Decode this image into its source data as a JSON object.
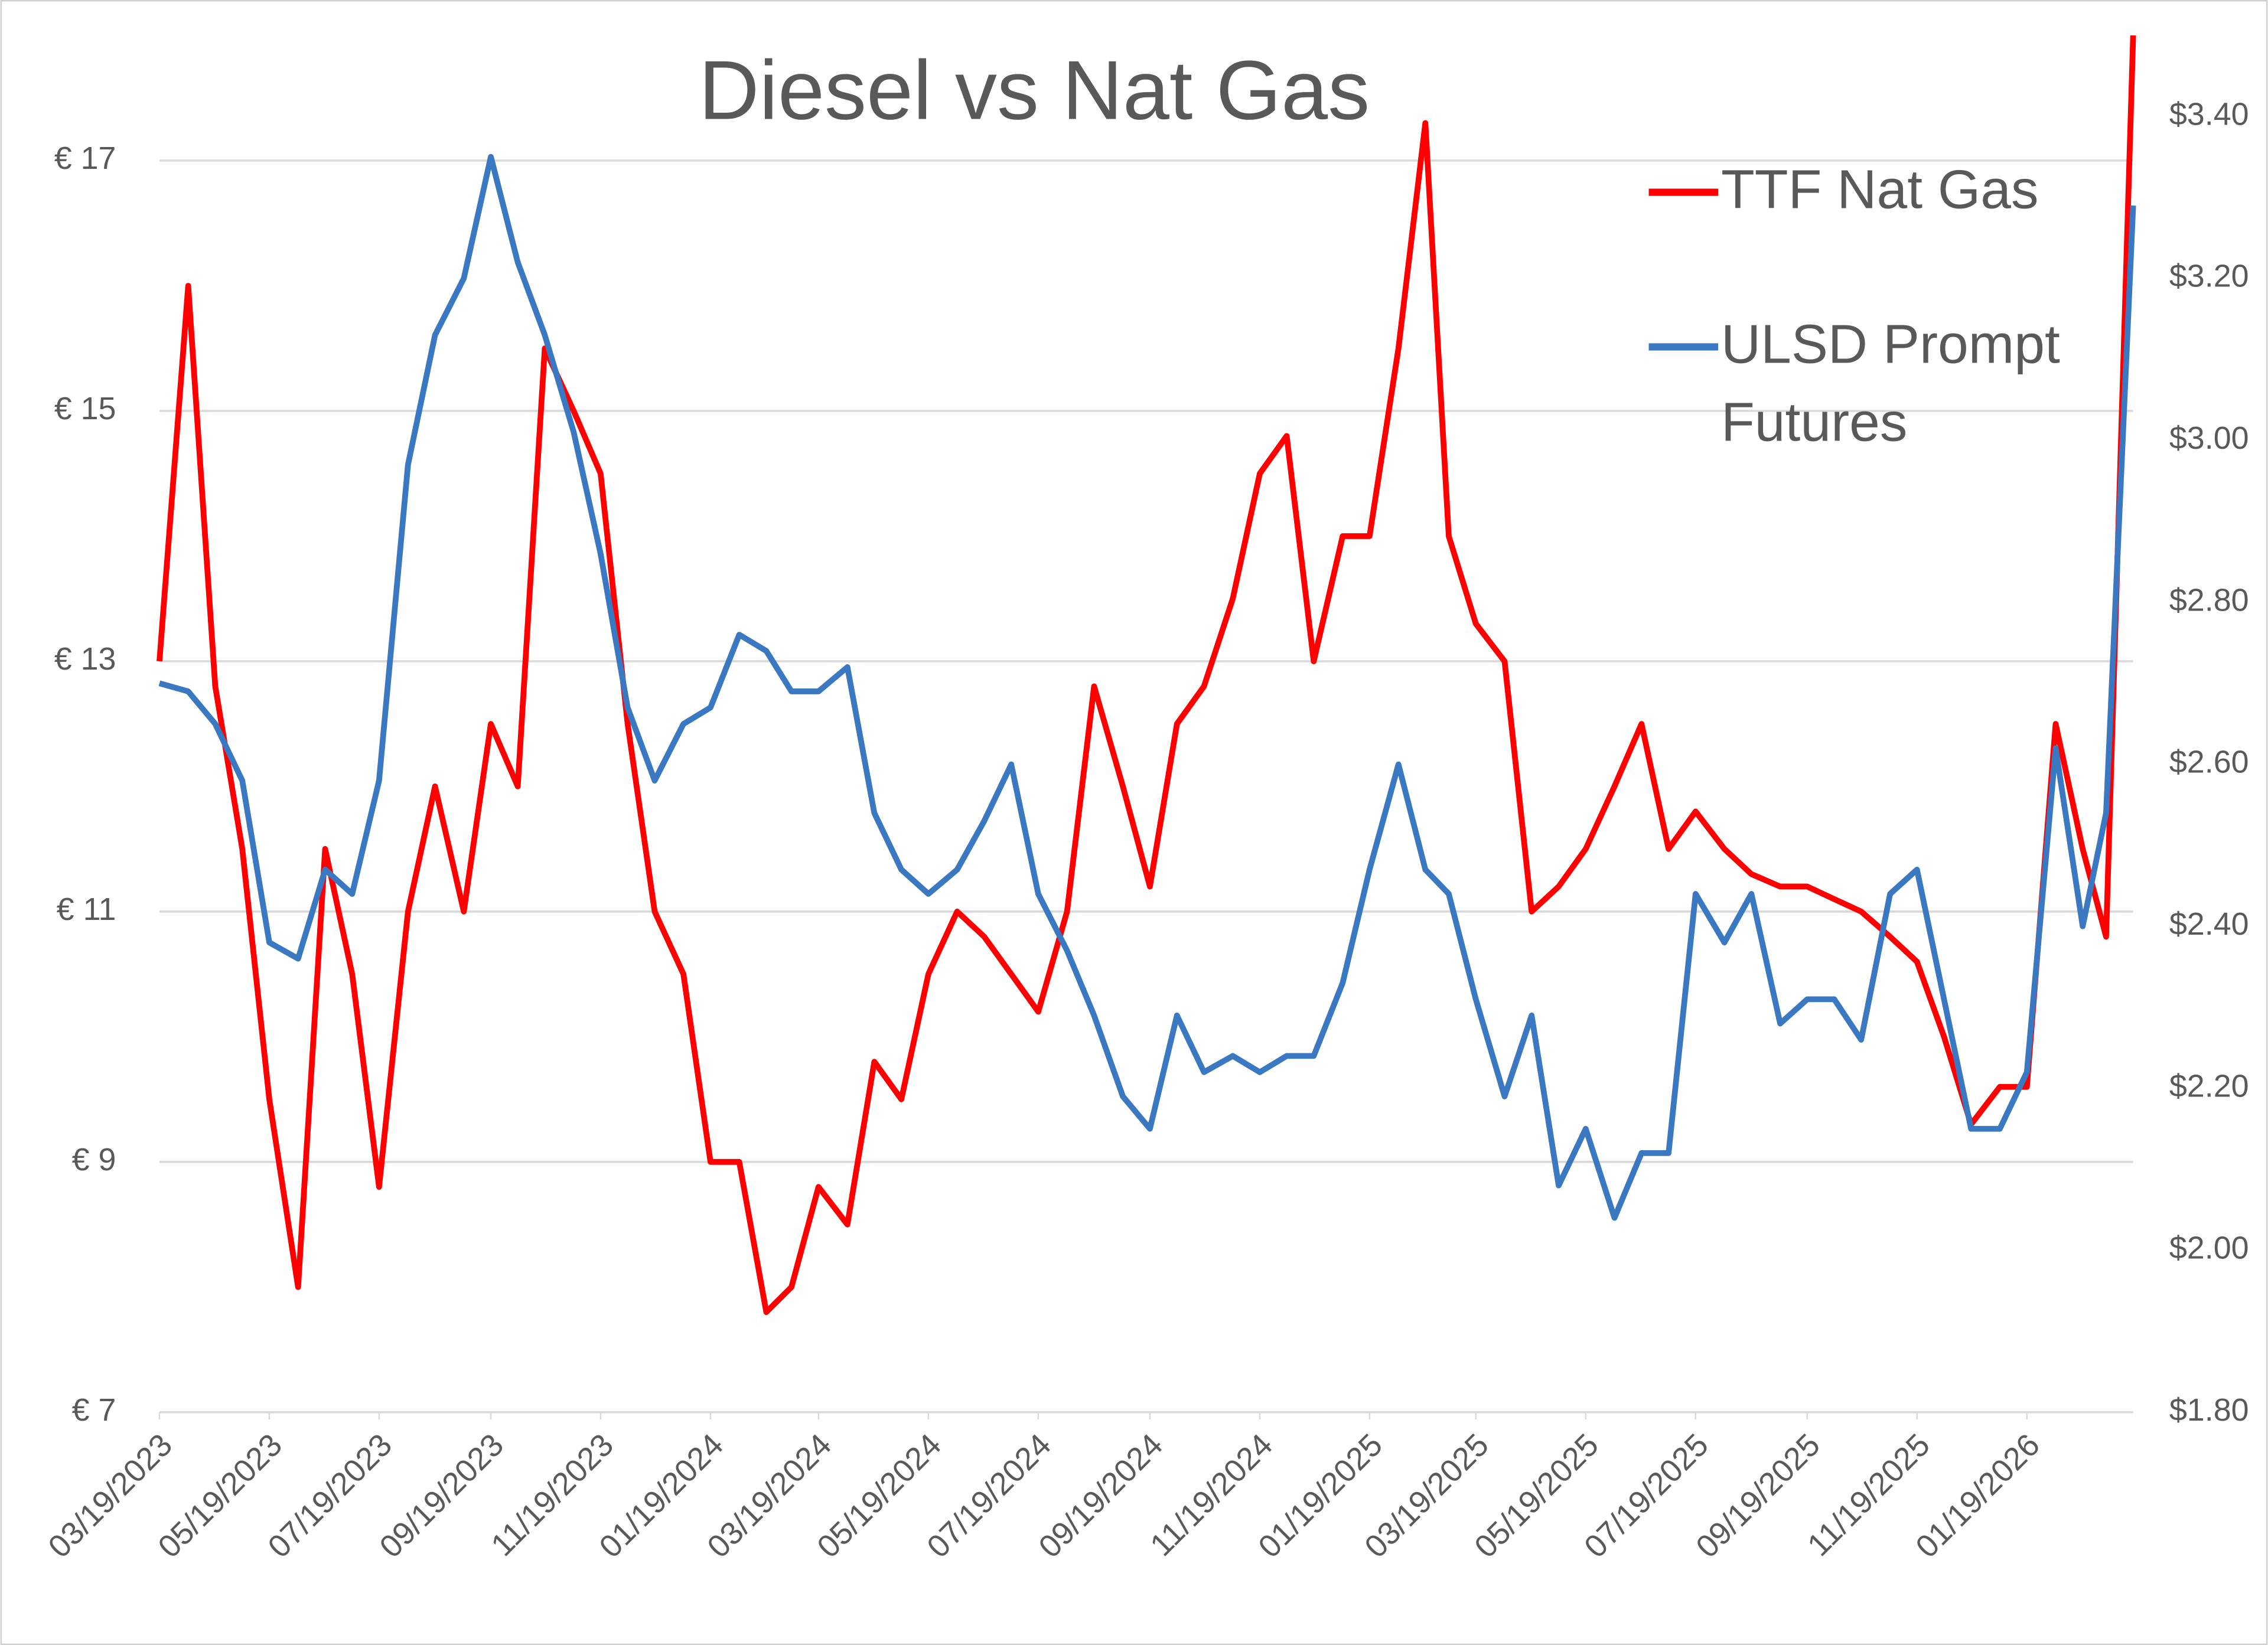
{
  "chart_data": {
    "type": "line",
    "title": "Diesel vs Nat Gas",
    "x": [
      "03/19/2023",
      "04/04/2023",
      "04/19/2023",
      "05/04/2023",
      "05/19/2023",
      "06/04/2023",
      "06/19/2023",
      "07/04/2023",
      "07/19/2023",
      "08/04/2023",
      "08/19/2023",
      "09/04/2023",
      "09/19/2023",
      "10/04/2023",
      "10/19/2023",
      "11/04/2023",
      "11/19/2023",
      "12/04/2023",
      "12/19/2023",
      "01/04/2024",
      "01/19/2024",
      "02/04/2024",
      "02/19/2024",
      "03/04/2024",
      "03/19/2024",
      "04/04/2024",
      "04/19/2024",
      "05/04/2024",
      "05/19/2024",
      "06/04/2024",
      "06/19/2024",
      "07/04/2024",
      "07/19/2024",
      "08/04/2024",
      "08/19/2024",
      "09/04/2024",
      "09/19/2024",
      "10/04/2024",
      "10/19/2024",
      "11/04/2024",
      "11/19/2024",
      "12/04/2024",
      "12/19/2024",
      "01/04/2025",
      "01/19/2025",
      "02/04/2025",
      "02/19/2025",
      "03/04/2025",
      "03/19/2025",
      "04/04/2025",
      "04/19/2025",
      "05/04/2025",
      "05/19/2025",
      "06/04/2025",
      "06/19/2025",
      "07/04/2025",
      "07/19/2025",
      "08/04/2025",
      "08/19/2025",
      "09/04/2025",
      "09/19/2025",
      "10/04/2025",
      "10/19/2025",
      "11/04/2025",
      "11/19/2025",
      "12/04/2025",
      "12/19/2025",
      "01/04/2026",
      "01/19/2026",
      "02/04/2026",
      "02/19/2026",
      "03/04/2026",
      "03/19/2026"
    ],
    "series": [
      {
        "name": "TTF Nat Gas",
        "color": "#ff0000",
        "values": [
          13.0,
          16.0,
          12.8,
          11.5,
          9.5,
          8.0,
          11.5,
          10.5,
          8.8,
          11.0,
          12.0,
          11.0,
          12.5,
          12.0,
          15.5,
          15.0,
          14.5,
          12.5,
          11.0,
          10.5,
          9.0,
          9.0,
          7.8,
          8.0,
          8.8,
          8.5,
          9.8,
          9.5,
          10.5,
          11.0,
          10.8,
          10.5,
          10.2,
          11.0,
          12.8,
          12.0,
          11.2,
          12.5,
          12.8,
          13.5,
          14.5,
          14.8,
          13.0,
          14.0,
          14.0,
          15.5,
          17.3,
          14.0,
          13.3,
          13.0,
          11.0,
          11.2,
          11.5,
          12.0,
          12.5,
          11.5,
          11.8,
          11.5,
          11.3,
          11.2,
          11.2,
          11.1,
          11.0,
          10.8,
          10.6,
          10.0,
          9.3,
          9.6,
          9.6,
          12.5,
          11.5,
          10.8,
          18.0
        ]
      },
      {
        "name": "ULSD Prompt Futures",
        "color": "#3a78c2",
        "axis": "y2",
        "values": [
          2.7,
          2.69,
          2.65,
          2.58,
          2.38,
          2.36,
          2.47,
          2.44,
          2.58,
          2.97,
          3.13,
          3.2,
          3.35,
          3.22,
          3.13,
          3.01,
          2.86,
          2.67,
          2.58,
          2.65,
          2.67,
          2.76,
          2.74,
          2.69,
          2.69,
          2.72,
          2.54,
          2.47,
          2.44,
          2.47,
          2.53,
          2.6,
          2.44,
          2.37,
          2.29,
          2.19,
          2.15,
          2.29,
          2.22,
          2.24,
          2.22,
          2.24,
          2.24,
          2.33,
          2.47,
          2.6,
          2.47,
          2.44,
          2.31,
          2.19,
          2.29,
          2.08,
          2.15,
          2.04,
          2.12,
          2.12,
          2.44,
          2.38,
          2.44,
          2.28,
          2.31,
          2.31,
          2.26,
          2.44,
          2.47,
          2.31,
          2.15,
          2.15,
          2.22,
          2.62,
          2.4,
          2.54,
          3.29
        ]
      }
    ],
    "xlim": [
      "03/19/2023",
      "03/19/2026"
    ],
    "xticks": [
      "03/19/2023",
      "05/19/2023",
      "07/19/2023",
      "09/19/2023",
      "11/19/2023",
      "01/19/2024",
      "03/19/2024",
      "05/19/2024",
      "07/19/2024",
      "09/19/2024",
      "11/19/2024",
      "01/19/2025",
      "03/19/2025",
      "05/19/2025",
      "07/19/2025",
      "09/19/2025",
      "11/19/2025",
      "01/19/2026"
    ],
    "ylim": [
      7,
      18
    ],
    "yticks": [
      {
        "value": 7,
        "label": "€ 7"
      },
      {
        "value": 9,
        "label": "€ 9"
      },
      {
        "value": 11,
        "label": "€ 11"
      },
      {
        "value": 13,
        "label": "€ 13"
      },
      {
        "value": 15,
        "label": "€ 15"
      },
      {
        "value": 17,
        "label": "€ 17"
      }
    ],
    "y2lim": [
      1.8,
      3.5
    ],
    "y2ticks": [
      {
        "value": 1.8,
        "label": "$1.80"
      },
      {
        "value": 2.0,
        "label": "$2.00"
      },
      {
        "value": 2.2,
        "label": "$2.20"
      },
      {
        "value": 2.4,
        "label": "$2.40"
      },
      {
        "value": 2.6,
        "label": "$2.60"
      },
      {
        "value": 2.8,
        "label": "$2.80"
      },
      {
        "value": 3.0,
        "label": "$3.00"
      },
      {
        "value": 3.2,
        "label": "$3.20"
      },
      {
        "value": 3.4,
        "label": "$3.40"
      }
    ],
    "grid": true
  }
}
